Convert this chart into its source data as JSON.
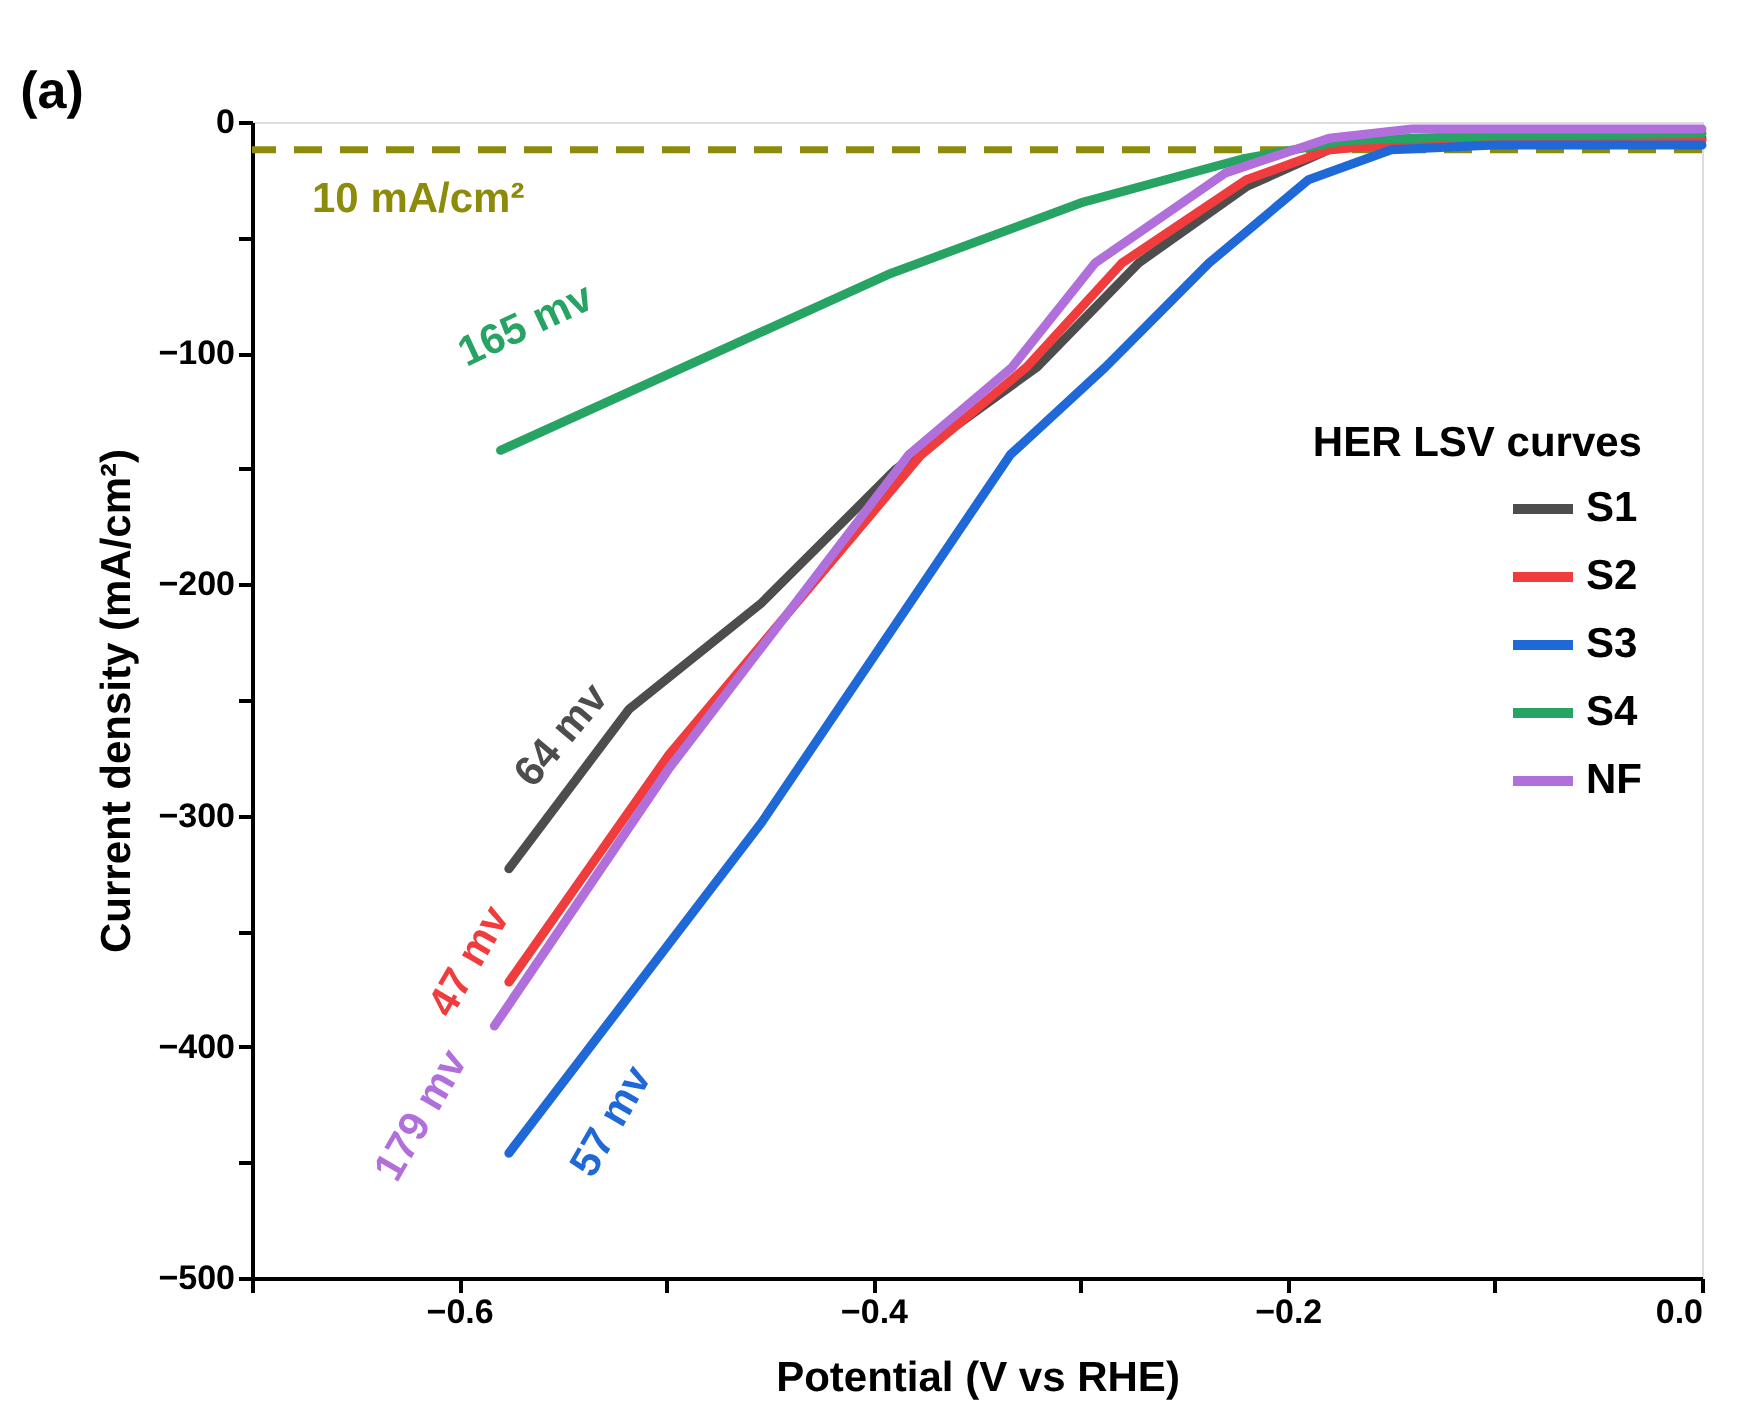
{
  "chart_data": {
    "type": "line",
    "xlabel": "Potential (V vs RHE)",
    "ylabel": "Current density (mA/cm²)",
    "legend_title": "HER LSV curves",
    "xlim": [
      -0.7,
      0.0
    ],
    "ylim": [
      -500,
      0
    ],
    "xticks": [
      {
        "value": -0.7,
        "label": null
      },
      {
        "value": -0.6,
        "label": "−0.6"
      },
      {
        "value": -0.5,
        "label": null
      },
      {
        "value": -0.4,
        "label": "−0.4"
      },
      {
        "value": -0.3,
        "label": null
      },
      {
        "value": -0.2,
        "label": "−0.2"
      },
      {
        "value": -0.1,
        "label": null
      },
      {
        "value": 0.0,
        "label": "0.0"
      }
    ],
    "yticks": [
      -500,
      {
        "value": -450,
        "label": null
      },
      -400,
      {
        "value": -350,
        "label": null
      },
      -300,
      {
        "value": -250,
        "label": null
      },
      -200,
      {
        "value": -150,
        "label": null
      },
      -100,
      {
        "value": -50,
        "label": null
      },
      0
    ],
    "series": [
      {
        "name": "S1",
        "color": "#4d4d4d",
        "x": [
          -0.576,
          -0.518,
          -0.454,
          -0.389,
          -0.321,
          -0.272,
          -0.22,
          -0.18,
          -0.14,
          0.0
        ],
        "values": [
          -323,
          -254,
          -208,
          -150,
          -106,
          -61,
          -28,
          -12,
          -8,
          -7
        ]
      },
      {
        "name": "S2",
        "color": "#f03c3c",
        "x": [
          -0.576,
          -0.499,
          -0.377,
          -0.326,
          -0.28,
          -0.22,
          -0.18,
          -0.14,
          0.0
        ],
        "values": [
          -372,
          -274,
          -144,
          -106,
          -61,
          -25,
          -12,
          -9,
          -8
        ]
      },
      {
        "name": "S3",
        "color": "#1f68d8",
        "x": [
          -0.576,
          -0.454,
          -0.334,
          -0.288,
          -0.238,
          -0.19,
          -0.15,
          -0.1,
          0.0
        ],
        "values": [
          -446,
          -303,
          -144,
          -106,
          -61,
          -25,
          -12,
          -10,
          -10
        ]
      },
      {
        "name": "S4",
        "color": "#27a463",
        "x": [
          -0.58,
          -0.393,
          -0.3,
          -0.222,
          -0.172,
          -0.1,
          0.0
        ],
        "values": [
          -142,
          -66,
          -35,
          -16,
          -8,
          -6,
          -5
        ]
      },
      {
        "name": "NF",
        "color": "#b06fdb",
        "x": [
          -0.583,
          -0.499,
          -0.383,
          -0.333,
          -0.293,
          -0.23,
          -0.18,
          -0.14,
          0.0
        ],
        "values": [
          -391,
          -280,
          -144,
          -106,
          -61,
          -22,
          -7,
          -3,
          -3
        ]
      }
    ],
    "ref_lines": [
      {
        "axis": "y",
        "value": -12,
        "label": "10 mA/cm²",
        "color": "#8c8c0a",
        "line_style": "dashed"
      }
    ],
    "annotations": [
      "64 mv",
      "47 mv",
      "57 mv",
      "165 mv",
      "179 mv",
      "(a)"
    ],
    "legend": "right",
    "grid": false,
    "marker": "none",
    "line_style": "solid"
  }
}
